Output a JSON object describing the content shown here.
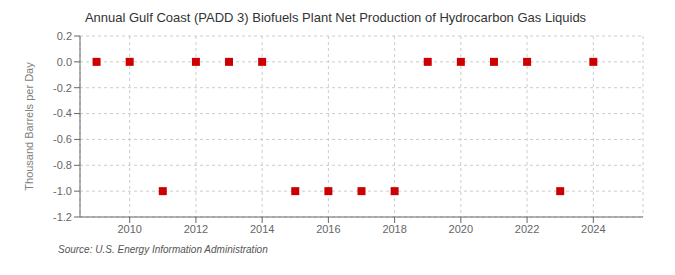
{
  "chart_data": {
    "type": "scatter",
    "title": "Annual Gulf Coast (PADD 3) Biofuels Plant Net Production of Hydrocarbon Gas Liquids",
    "ylabel": "Thousand Barrels per Day",
    "source": "Source: U.S. Energy Information Administration",
    "x": [
      2009,
      2010,
      2011,
      2012,
      2013,
      2014,
      2015,
      2016,
      2017,
      2018,
      2019,
      2020,
      2021,
      2022,
      2023,
      2024
    ],
    "values": [
      0.0,
      0.0,
      -1.0,
      0.0,
      0.0,
      0.0,
      -1.0,
      -1.0,
      -1.0,
      -1.0,
      0.0,
      0.0,
      0.0,
      0.0,
      -1.0,
      0.0
    ],
    "color": "#cc0000",
    "marker": "square",
    "xlim": [
      2008.5,
      2025.5
    ],
    "xticks": [
      2010,
      2012,
      2014,
      2016,
      2018,
      2020,
      2022,
      2024
    ],
    "ylim": [
      -1.2,
      0.2
    ],
    "yticks": [
      0.2,
      {
        "value": 0,
        "label": "0.0"
      },
      -0.2,
      -0.4,
      -0.6,
      -0.8,
      {
        "value": -1,
        "label": "-1.0"
      },
      -1.2
    ],
    "grid": true
  }
}
